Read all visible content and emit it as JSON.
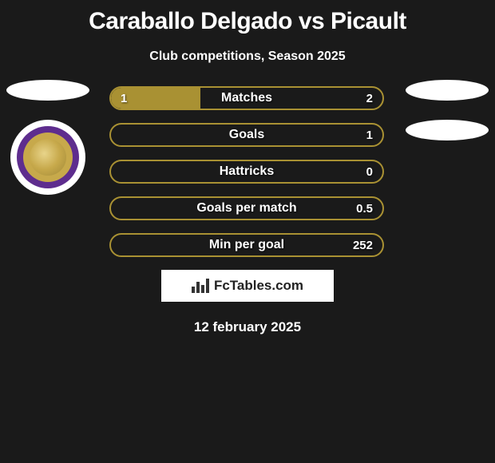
{
  "title": "Caraballo Delgado vs Picault",
  "subtitle": "Club competitions, Season 2025",
  "date": "12 february 2025",
  "logo_text": "FcTables.com",
  "background_color": "#1a1a1a",
  "bar_border_color": "#a99133",
  "bar_fill_color": "#a99133",
  "text_color": "#ffffff",
  "bars": [
    {
      "label": "Matches",
      "left": "1",
      "right": "2",
      "fill_left_pct": 33
    },
    {
      "label": "Goals",
      "left": "",
      "right": "1",
      "fill_left_pct": 0
    },
    {
      "label": "Hattricks",
      "left": "",
      "right": "0",
      "fill_left_pct": 0
    },
    {
      "label": "Goals per match",
      "left": "",
      "right": "0.5",
      "fill_left_pct": 0
    },
    {
      "label": "Min per goal",
      "left": "",
      "right": "252",
      "fill_left_pct": 0
    }
  ],
  "team_left": {
    "badge_bg": "#5e2d8e",
    "badge_accent": "#c7a94b"
  }
}
